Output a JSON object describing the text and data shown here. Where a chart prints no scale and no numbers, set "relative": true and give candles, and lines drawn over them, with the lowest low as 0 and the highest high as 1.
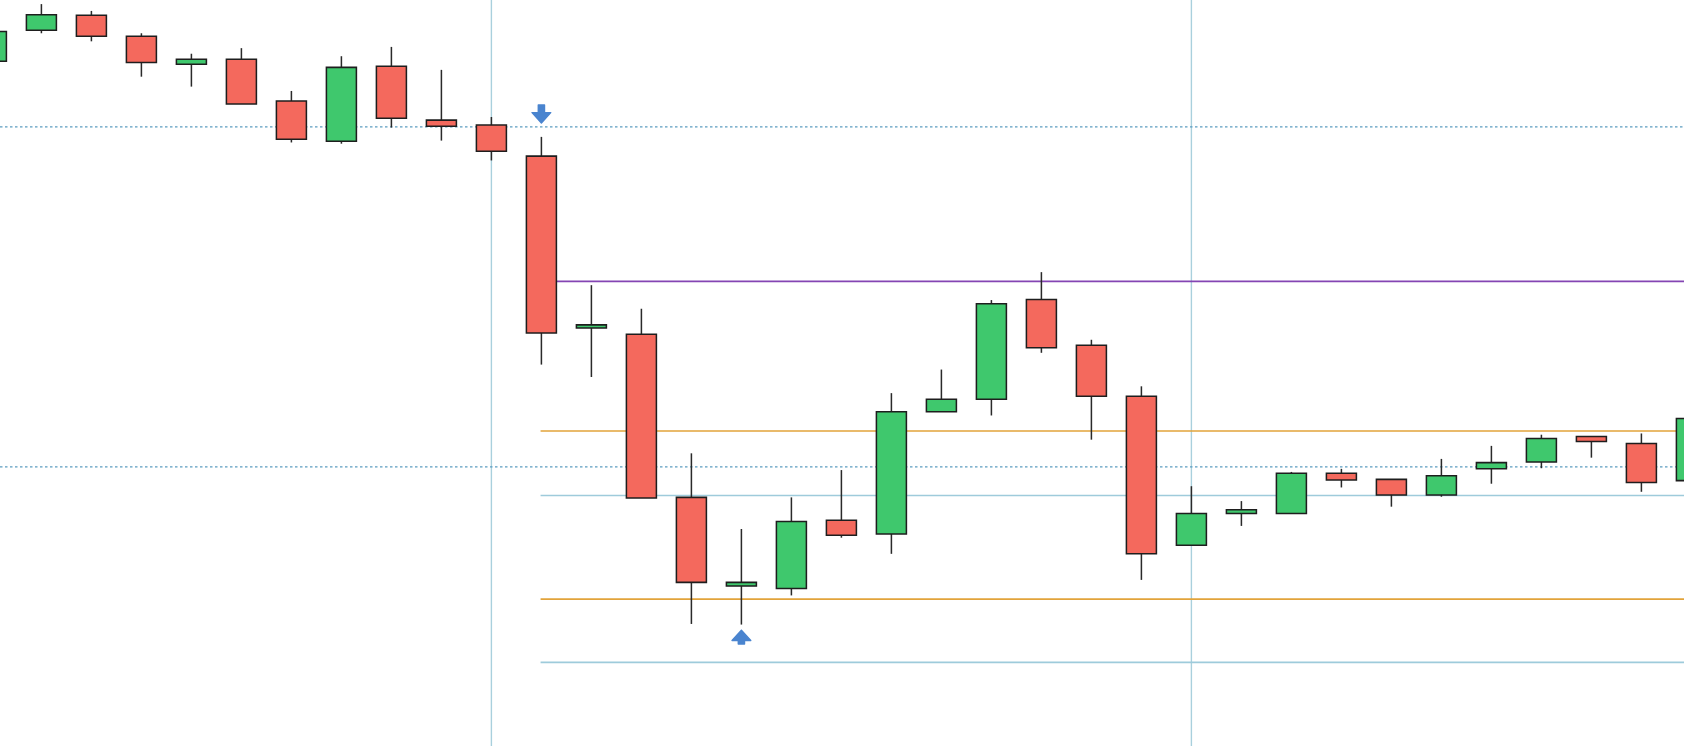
{
  "chart_data": {
    "type": "candlestick",
    "relative": true,
    "tick_labels": false,
    "categories": [
      null,
      null,
      null,
      null,
      null,
      null,
      null,
      null,
      null,
      null,
      null,
      null,
      null,
      null,
      null,
      null,
      null,
      null,
      null,
      null,
      null,
      null,
      null,
      null,
      null,
      null,
      null,
      null,
      null,
      null,
      null,
      null,
      null,
      null,
      null
    ],
    "ohlc": [
      [
        0.908,
        0.956,
        0.908,
        0.956
      ],
      [
        0.958,
        1.0,
        0.953,
        0.983
      ],
      [
        0.982,
        0.989,
        0.94,
        0.948
      ],
      [
        0.948,
        0.953,
        0.883,
        0.906
      ],
      [
        0.903,
        0.92,
        0.867,
        0.911
      ],
      [
        0.911,
        0.929,
        0.839,
        0.839
      ],
      [
        0.844,
        0.86,
        0.777,
        0.782
      ],
      [
        0.779,
        0.916,
        0.775,
        0.898
      ],
      [
        0.9,
        0.931,
        0.801,
        0.816
      ],
      [
        0.813,
        0.894,
        0.78,
        0.803
      ],
      [
        0.805,
        0.818,
        0.748,
        0.763
      ],
      [
        0.755,
        0.786,
        0.419,
        0.47
      ],
      [
        0.478,
        0.547,
        0.399,
        0.483
      ],
      [
        0.468,
        0.509,
        0.204,
        0.204
      ],
      [
        0.205,
        0.276,
        0.001,
        0.068
      ],
      [
        0.062,
        0.154,
        0,
        0.068
      ],
      [
        0.058,
        0.205,
        0.047,
        0.166
      ],
      [
        0.168,
        0.249,
        0.14,
        0.144
      ],
      [
        0.146,
        0.373,
        0.114,
        0.343
      ],
      [
        0.343,
        0.411,
        0.343,
        0.363
      ],
      [
        0.363,
        0.523,
        0.337,
        0.517
      ],
      [
        0.524,
        0.568,
        0.438,
        0.446
      ],
      [
        0.45,
        0.459,
        0.298,
        0.368
      ],
      [
        0.368,
        0.384,
        0.072,
        0.114
      ],
      [
        0.128,
        0.223,
        0.128,
        0.179
      ],
      [
        0.179,
        0.199,
        0.159,
        0.185
      ],
      [
        0.179,
        0.246,
        0.179,
        0.244
      ],
      [
        0.244,
        0.251,
        0.221,
        0.233
      ],
      [
        0.234,
        0.234,
        0.19,
        0.209
      ],
      [
        0.209,
        0.267,
        0.206,
        0.24
      ],
      [
        0.251,
        0.288,
        0.227,
        0.261
      ],
      [
        0.262,
        0.306,
        0.252,
        0.3
      ],
      [
        0.303,
        0.303,
        0.269,
        0.295
      ],
      [
        0.292,
        0.308,
        0.214,
        0.229
      ],
      [
        0.232,
        0.332,
        0.232,
        0.332
      ]
    ],
    "colors": [
      "#3fc86d",
      "#3fc86d",
      "#f4695d",
      "#f4695d",
      "#3fc86d",
      "#f4695d",
      "#f4695d",
      "#3fc86d",
      "#f4695d",
      "#f4695d",
      "#f4695d",
      "#f4695d",
      "#3fc86d",
      "#f4695d",
      "#f4695d",
      "#3fc86d",
      "#3fc86d",
      "#f4695d",
      "#3fc86d",
      "#3fc86d",
      "#3fc86d",
      "#f4695d",
      "#f4695d",
      "#f4695d",
      "#3fc86d",
      "#3fc86d",
      "#3fc86d",
      "#f4695d",
      "#f4695d",
      "#3fc86d",
      "#3fc86d",
      "#3fc86d",
      "#f4695d",
      "#f4695d",
      "#3fc86d"
    ],
    "ref_lines": [
      {
        "axis": "y",
        "value": 0.802,
        "color": "#5b9cc0",
        "line_style": "dotted"
      },
      {
        "axis": "y",
        "value": 0.254,
        "color": "#5b9cc0",
        "line_style": "dotted"
      },
      {
        "axis": "y",
        "value": 0.553,
        "color": "#8445b3",
        "line_style": "solid"
      },
      {
        "axis": "y",
        "value": 0.312,
        "color": "#e2a33a",
        "line_style": "solid"
      },
      {
        "axis": "y",
        "value": 0.208,
        "color": "#9ecbdb",
        "line_style": "solid"
      },
      {
        "axis": "y",
        "value": 0.041,
        "color": "#e2a33a",
        "line_style": "solid"
      },
      {
        "axis": "y",
        "value": -0.061,
        "color": "#9ecbdb",
        "line_style": "solid"
      }
    ]
  }
}
